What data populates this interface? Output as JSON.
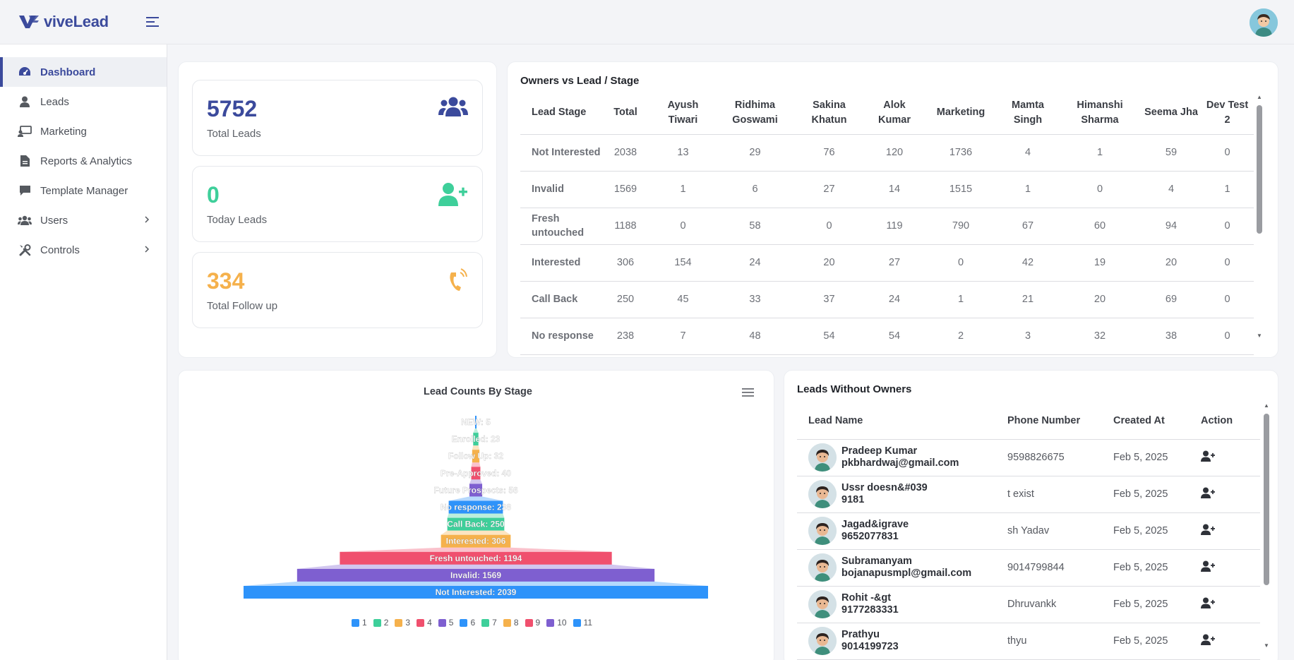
{
  "header": {
    "brand": "viveLead",
    "brand_color": "#3b4a9c",
    "icons": [
      "logo-icon",
      "menu-toggle-icon",
      "user-avatar"
    ]
  },
  "sidebar": {
    "items": [
      {
        "label": "Dashboard",
        "icon": "dashboard-icon",
        "active": true
      },
      {
        "label": "Leads",
        "icon": "user-icon"
      },
      {
        "label": "Marketing",
        "icon": "marketing-icon"
      },
      {
        "label": "Reports & Analytics",
        "icon": "report-icon"
      },
      {
        "label": "Template Manager",
        "icon": "chat-icon"
      },
      {
        "label": "Users",
        "icon": "users-icon",
        "has_children": true
      },
      {
        "label": "Controls",
        "icon": "tools-icon",
        "has_children": true
      }
    ]
  },
  "stats": [
    {
      "value": "5752",
      "label": "Total Leads",
      "color": "#3b4a9c",
      "icon": "users-group-icon"
    },
    {
      "value": "0",
      "label": "Today Leads",
      "color": "#3ecf9a",
      "icon": "user-plus-icon"
    },
    {
      "value": "334",
      "label": "Total Follow up",
      "color": "#f5b14c",
      "icon": "phone-ring-icon"
    }
  ],
  "owners_table": {
    "title": "Owners vs Lead / Stage",
    "columns": [
      "Lead Stage",
      "Total",
      "Ayush Tiwari",
      "Ridhima Goswami",
      "Sakina Khatun",
      "Alok Kumar",
      "Marketing",
      "Mamta Singh",
      "Himanshi Sharma",
      "Seema Jha",
      "Dev Test 2"
    ],
    "rows": [
      [
        "Not Interested",
        "2038",
        "13",
        "29",
        "76",
        "120",
        "1736",
        "4",
        "1",
        "59",
        "0"
      ],
      [
        "Invalid",
        "1569",
        "1",
        "6",
        "27",
        "14",
        "1515",
        "1",
        "0",
        "4",
        "1"
      ],
      [
        "Fresh untouched",
        "1188",
        "0",
        "58",
        "0",
        "119",
        "790",
        "67",
        "60",
        "94",
        "0"
      ],
      [
        "Interested",
        "306",
        "154",
        "24",
        "20",
        "27",
        "0",
        "42",
        "19",
        "20",
        "0"
      ],
      [
        "Call Back",
        "250",
        "45",
        "33",
        "37",
        "24",
        "1",
        "21",
        "20",
        "69",
        "0"
      ],
      [
        "No response",
        "238",
        "7",
        "48",
        "54",
        "54",
        "2",
        "3",
        "32",
        "38",
        "0"
      ]
    ]
  },
  "chart_data": {
    "type": "funnel",
    "title": "Lead Counts By Stage",
    "categories": [
      "NEW",
      "Enrolled",
      "Follow Up",
      "Pre-Approved",
      "Future Prospects",
      "No response",
      "Call Back",
      "Interested",
      "Fresh untouched",
      "Invalid",
      "Not Interested"
    ],
    "values": [
      5,
      23,
      32,
      40,
      56,
      238,
      250,
      306,
      1194,
      1569,
      2039
    ],
    "labels": [
      "NEW: 5",
      "Enrolled: 23",
      "Follow Up: 32",
      "Pre-Approved: 40",
      "Future Prospects: 56",
      "No response: 238",
      "Call Back: 250",
      "Interested: 306",
      "Fresh untouched: 1194",
      "Invalid: 1569",
      "Not Interested: 2039"
    ],
    "colors": [
      "#2e93fa",
      "#3ecf9a",
      "#f5b14c",
      "#f0506e",
      "#7e5fd0",
      "#2e93fa",
      "#3ecf9a",
      "#f5b14c",
      "#f0506e",
      "#7e5fd0",
      "#2e93fa"
    ],
    "legend": [
      "1",
      "2",
      "3",
      "4",
      "5",
      "6",
      "7",
      "8",
      "9",
      "10",
      "11"
    ],
    "legend_colors": [
      "#2e93fa",
      "#3ecf9a",
      "#f5b14c",
      "#f0506e",
      "#7e5fd0",
      "#2e93fa",
      "#3ecf9a",
      "#f5b14c",
      "#f0506e",
      "#7e5fd0",
      "#2e93fa"
    ],
    "legend_position": "bottom"
  },
  "leads_without_owners": {
    "title": "Leads Without Owners",
    "columns": [
      "Lead Name",
      "Phone Number",
      "Created At",
      "Action"
    ],
    "rows": [
      {
        "name": "Pradeep Kumar",
        "sub": "pkbhardwaj@gmail.com",
        "phone": "9598826675",
        "created": "Feb 5, 2025"
      },
      {
        "name": "Ussr doesn&#039",
        "sub": "9181",
        "phone": "t exist",
        "created": "Feb 5, 2025"
      },
      {
        "name": "Jagad&igrave",
        "sub": "9652077831",
        "phone": "sh Yadav",
        "created": "Feb 5, 2025"
      },
      {
        "name": "Subramanyam",
        "sub": "bojanapusmpl@gmail.com",
        "phone": "9014799844",
        "created": "Feb 5, 2025"
      },
      {
        "name": "Rohit -&gt",
        "sub": "9177283331",
        "phone": "Dhruvankk",
        "created": "Feb 5, 2025"
      },
      {
        "name": "Prathyu",
        "sub": "9014199723",
        "phone": "thyu",
        "created": "Feb 5, 2025"
      }
    ]
  }
}
